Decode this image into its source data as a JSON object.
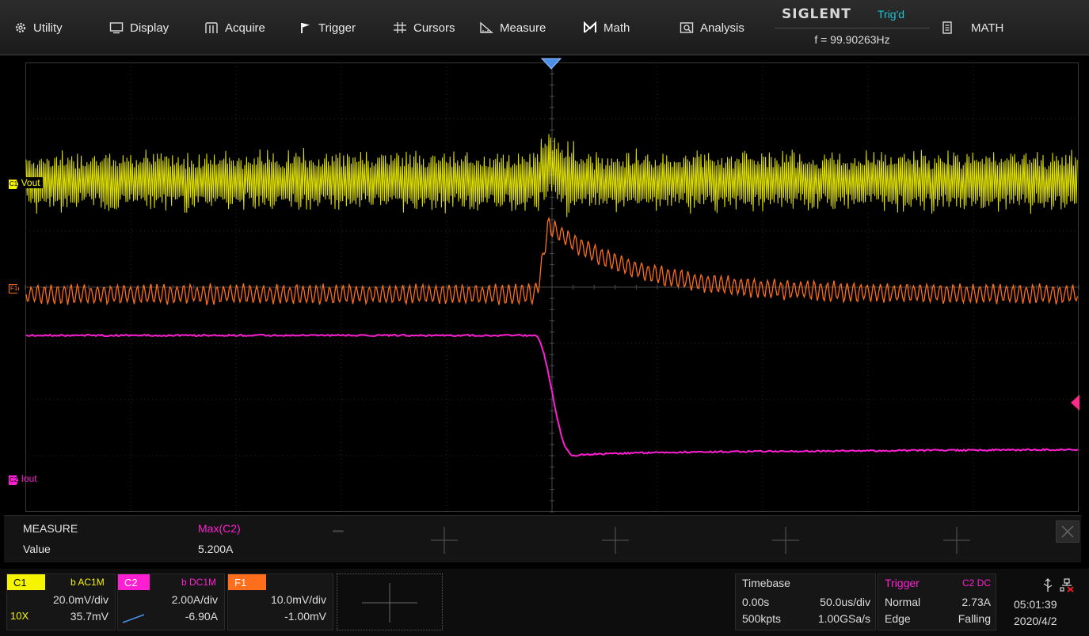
{
  "menu": {
    "utility": "Utility",
    "display": "Display",
    "acquire": "Acquire",
    "trigger": "Trigger",
    "cursors": "Cursors",
    "measure": "Measure",
    "math": "Math",
    "analysis": "Analysis",
    "math_button": "MATH"
  },
  "brand": {
    "logo": "SIGLENT",
    "trig_status": "Trig'd",
    "frequency": "f = 99.90263Hz"
  },
  "channels_on_screen": {
    "c1_label": "Vout",
    "c1_tag": "C1",
    "f1_tag": "F1",
    "c2_tag": "C2",
    "c2_label": "Iout"
  },
  "colors": {
    "c1": "#f5f500",
    "c2": "#ff1fd2",
    "f1": "#ff6e1a",
    "trig_marker": "#4a8fe8",
    "c2_level_marker": "#ff2b8a"
  },
  "measure": {
    "title": "MEASURE",
    "value_label": "Value",
    "item_name": "Max(C2)",
    "item_value": "5.200A"
  },
  "status": {
    "c1": {
      "name": "C1",
      "coupling": "b AC1M",
      "scale": "20.0mV/div",
      "probe": "10X",
      "offset": "35.7mV"
    },
    "c2": {
      "name": "C2",
      "coupling": "b DC1M",
      "scale": "2.00A/div",
      "offset": "-6.90A"
    },
    "f1": {
      "name": "F1",
      "scale": "10.0mV/div",
      "offset": "-1.00mV"
    },
    "timebase": {
      "title": "Timebase",
      "delay": "0.00s",
      "scale": "50.0us/div",
      "memory": "500kpts",
      "sample_rate": "1.00GSa/s"
    },
    "trigger": {
      "title": "Trigger",
      "source": "C2 DC",
      "mode": "Normal",
      "level": "2.73A",
      "type": "Edge",
      "slope": "Falling"
    },
    "clock": {
      "time": "05:01:39",
      "date": "2020/4/2"
    }
  }
}
